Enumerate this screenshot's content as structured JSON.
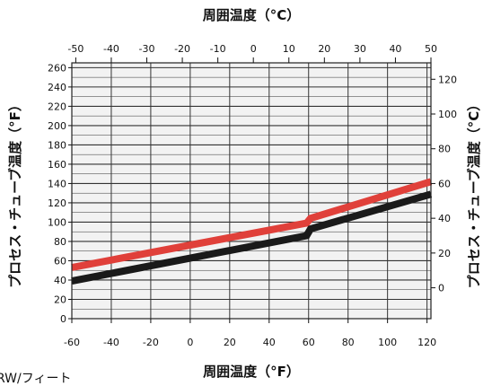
{
  "chart_data": {
    "type": "line",
    "title": "",
    "top_axis": {
      "label": "周囲温度（°C）",
      "ticks": [
        "-50",
        "-40",
        "-30",
        "-20",
        "-10",
        "0",
        "10",
        "20",
        "30",
        "40",
        "50"
      ]
    },
    "bottom_axis": {
      "label": "周囲温度（°F）",
      "ticks": [
        "-60",
        "-40",
        "-20",
        "0",
        "20",
        "40",
        "60",
        "80",
        "100",
        "120"
      ],
      "xlim": [
        -60,
        122
      ]
    },
    "left_axis": {
      "label": "プロセス・チューブ温度（°F）",
      "ticks": [
        "0",
        "20",
        "40",
        "60",
        "80",
        "100",
        "120",
        "140",
        "160",
        "180",
        "200",
        "220",
        "240",
        "260"
      ],
      "ylim": [
        0,
        265
      ]
    },
    "right_axis": {
      "label": "プロセス・チューブ温度（°C）",
      "ticks": [
        "0",
        "20",
        "40",
        "60",
        "80",
        "100",
        "120"
      ]
    },
    "series": [
      {
        "color": "#e0403a",
        "x": [
          -60,
          59,
          61,
          122
        ],
        "y": [
          53,
          99,
          104,
          142
        ]
      },
      {
        "color": "#1a1a1a",
        "x": [
          -60,
          59,
          61,
          122
        ],
        "y": [
          39,
          86,
          93,
          129
        ]
      }
    ],
    "grid": true
  },
  "footnote": "RW/フィート"
}
